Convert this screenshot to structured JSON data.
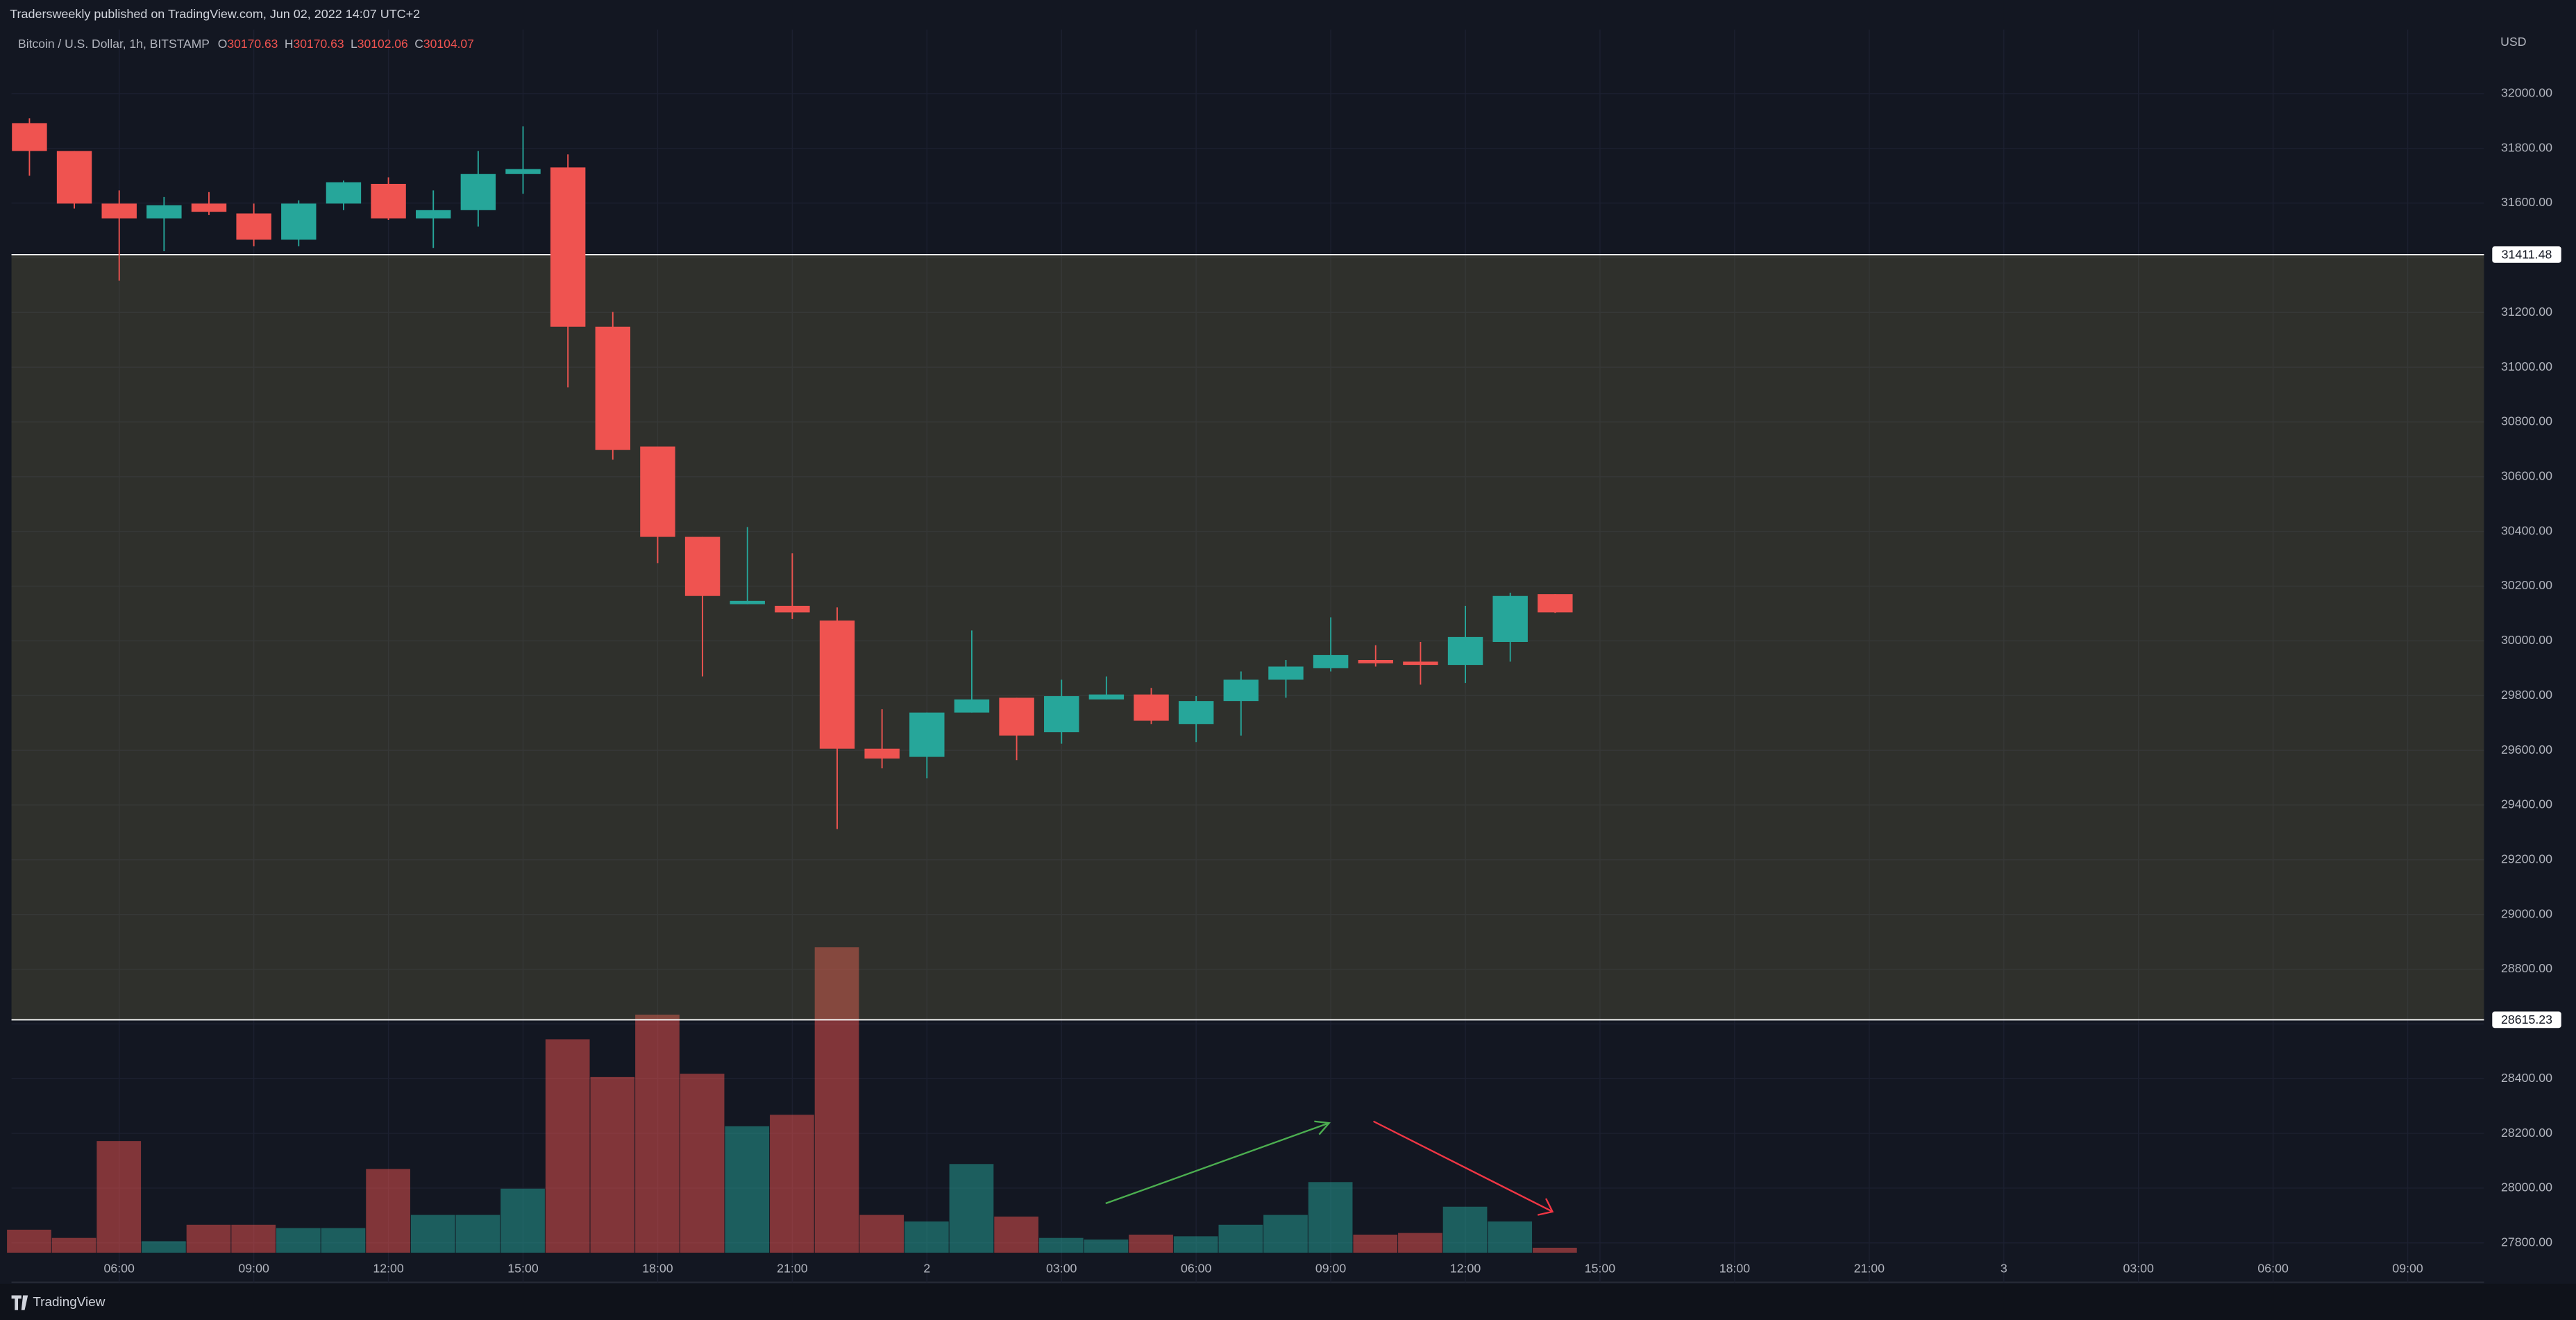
{
  "header": {
    "text": "Tradersweekly published on TradingView.com, Jun 02, 2022 14:07 UTC+2"
  },
  "footer": {
    "brand": "TradingView"
  },
  "chart_data": {
    "type": "candlestick",
    "title": "Bitcoin / U.S. Dollar, 1h, BITSTAMP",
    "currency": "USD",
    "ohlc_labels": [
      "O",
      "H",
      "L",
      "C"
    ],
    "x": [
      0,
      1,
      2,
      3,
      4,
      5,
      6,
      7,
      8,
      9,
      10,
      11,
      12,
      13,
      14,
      15,
      16,
      17,
      18,
      19,
      20,
      21,
      22,
      23,
      24,
      25,
      26,
      27,
      28,
      29,
      30,
      31,
      32,
      33,
      34
    ],
    "open": [
      31892,
      31790,
      31598,
      31544,
      31598,
      31562,
      31466,
      31598,
      31670,
      31544,
      31574,
      31706,
      31730,
      31148,
      30710,
      30380,
      30134,
      30128,
      30074,
      29606,
      29576,
      29738,
      29792,
      29666,
      29786,
      29804,
      29696,
      29780,
      29858,
      29900,
      29930,
      29924,
      29912,
      29996,
      30170.63
    ],
    "high": [
      31910,
      31790,
      31646,
      31622,
      31640,
      31598,
      31610,
      31682,
      31694,
      31646,
      31790,
      31880,
      31778,
      31202,
      30710,
      30380,
      30416,
      30320,
      30122,
      29750,
      29738,
      30038,
      29792,
      29858,
      29870,
      29828,
      29798,
      29888,
      29930,
      30086,
      29984,
      29996,
      30128,
      30176,
      30170.63
    ],
    "low": [
      31700,
      31580,
      31316,
      31424,
      31556,
      31442,
      31442,
      31574,
      31538,
      31436,
      31514,
      31634,
      30926,
      30662,
      30284,
      29870,
      30134,
      30080,
      29312,
      29534,
      29498,
      29738,
      29564,
      29624,
      29786,
      29696,
      29630,
      29654,
      29792,
      29888,
      29906,
      29840,
      29846,
      29924,
      30102.06
    ],
    "close": [
      31790,
      31598,
      31544,
      31592,
      31568,
      31466,
      31598,
      31676,
      31544,
      31574,
      31706,
      31724,
      31148,
      30698,
      30380,
      30164,
      30146,
      30104,
      29606,
      29570,
      29738,
      29786,
      29654,
      29798,
      29804,
      29708,
      29780,
      29858,
      29906,
      29948,
      29918,
      29912,
      30014,
      30164,
      30104.07
    ],
    "up_color": "#26a69a",
    "down_color": "#ef5350",
    "volume": {
      "axis": "y2",
      "values": [
        14,
        9,
        68,
        7,
        17,
        17,
        15,
        15,
        51,
        23,
        23,
        39,
        130,
        107,
        145,
        109,
        77,
        84,
        186,
        23,
        19,
        54,
        22,
        9,
        8,
        11,
        10,
        17,
        23,
        43,
        11,
        12,
        28,
        19,
        3
      ],
      "up_color": "rgba(38,166,154,0.5)",
      "down_color": "rgba(239,83,80,0.5)"
    },
    "xlim": [
      -0.4,
      54.7
    ],
    "xticks": [
      {
        "value": 2,
        "label": "06:00"
      },
      {
        "value": 5,
        "label": "09:00"
      },
      {
        "value": 8,
        "label": "12:00"
      },
      {
        "value": 11,
        "label": "15:00"
      },
      {
        "value": 14,
        "label": "18:00"
      },
      {
        "value": 17,
        "label": "21:00"
      },
      {
        "value": 20,
        "label": "2"
      },
      {
        "value": 23,
        "label": "03:00"
      },
      {
        "value": 26,
        "label": "06:00"
      },
      {
        "value": 29,
        "label": "09:00"
      },
      {
        "value": 32,
        "label": "12:00"
      },
      {
        "value": 35,
        "label": "15:00"
      },
      {
        "value": 38,
        "label": "18:00"
      },
      {
        "value": 41,
        "label": "21:00"
      },
      {
        "value": 44,
        "label": "3"
      },
      {
        "value": 47,
        "label": "03:00"
      },
      {
        "value": 50,
        "label": "06:00"
      },
      {
        "value": 53,
        "label": "09:00"
      }
    ],
    "ylim": [
      27656,
      32234
    ],
    "yticks": [
      {
        "value": 27800,
        "label": "27800.00"
      },
      {
        "value": 28000,
        "label": "28000.00"
      },
      {
        "value": 28200,
        "label": "28200.00"
      },
      {
        "value": 28400,
        "label": "28400.00"
      },
      {
        "value": 28600,
        "label": "28600.00"
      },
      {
        "value": 28800,
        "label": "28800.00"
      },
      {
        "value": 29000,
        "label": "29000.00"
      },
      {
        "value": 29200,
        "label": "29200.00"
      },
      {
        "value": 29400,
        "label": "29400.00"
      },
      {
        "value": 29600,
        "label": "29600.00"
      },
      {
        "value": 29800,
        "label": "29800.00"
      },
      {
        "value": 30000,
        "label": "30000.00"
      },
      {
        "value": 30200,
        "label": "30200.00"
      },
      {
        "value": 30400,
        "label": "30400.00"
      },
      {
        "value": 30600,
        "label": "30600.00"
      },
      {
        "value": 30800,
        "label": "30800.00"
      },
      {
        "value": 31000,
        "label": "31000.00"
      },
      {
        "value": 31200,
        "label": "31200.00"
      },
      {
        "value": 31400,
        "label": "31400.00"
      },
      {
        "value": 31600,
        "label": "31600.00"
      },
      {
        "value": 31800,
        "label": "31800.00"
      },
      {
        "value": 32000,
        "label": "32000.00"
      }
    ],
    "y2lim": [
      -18,
      745
    ],
    "grid": true,
    "hlines": [
      {
        "value": 31411.48,
        "color": "#ffffff"
      },
      {
        "value": 28615.23,
        "color": "#ffffff"
      }
    ],
    "zone_color": "rgba(150,140,80,0.22)"
  }
}
